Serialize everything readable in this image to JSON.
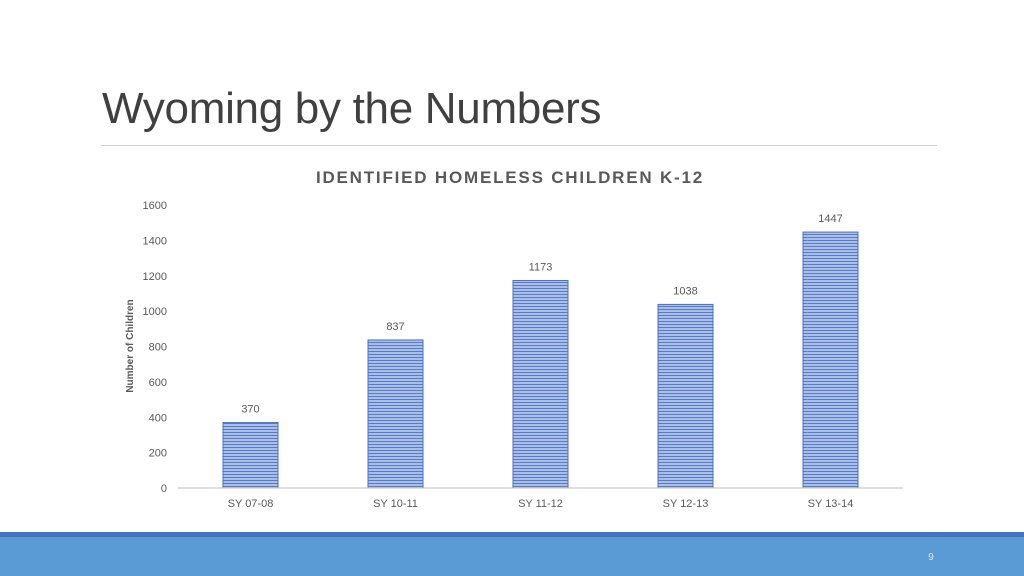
{
  "slide": {
    "title": "Wyoming by the Numbers",
    "page_number": "9"
  },
  "colors": {
    "bar_fill": "#a9bfe6",
    "bar_stripe": "#5b7ac8",
    "axis": "#bfbfbf",
    "text": "#595959",
    "footer_dark": "#4472c4",
    "footer_band": "#5b9bd5"
  },
  "chart_data": {
    "type": "bar",
    "title": "IDENTIFIED HOMELESS CHILDREN K-12",
    "xlabel": "",
    "ylabel": "Number of Children",
    "categories": [
      "SY 07-08",
      "SY 10-11",
      "SY 11-12",
      "SY 12-13",
      "SY 13-14"
    ],
    "values": [
      370,
      837,
      1173,
      1038,
      1447
    ],
    "data_labels": [
      "370",
      "837",
      "1173",
      "1038",
      "1447"
    ],
    "ylim": [
      0,
      1600
    ],
    "yticks": [
      0,
      200,
      400,
      600,
      800,
      1000,
      1200,
      1400,
      1600
    ],
    "grid": false,
    "legend": "none"
  }
}
